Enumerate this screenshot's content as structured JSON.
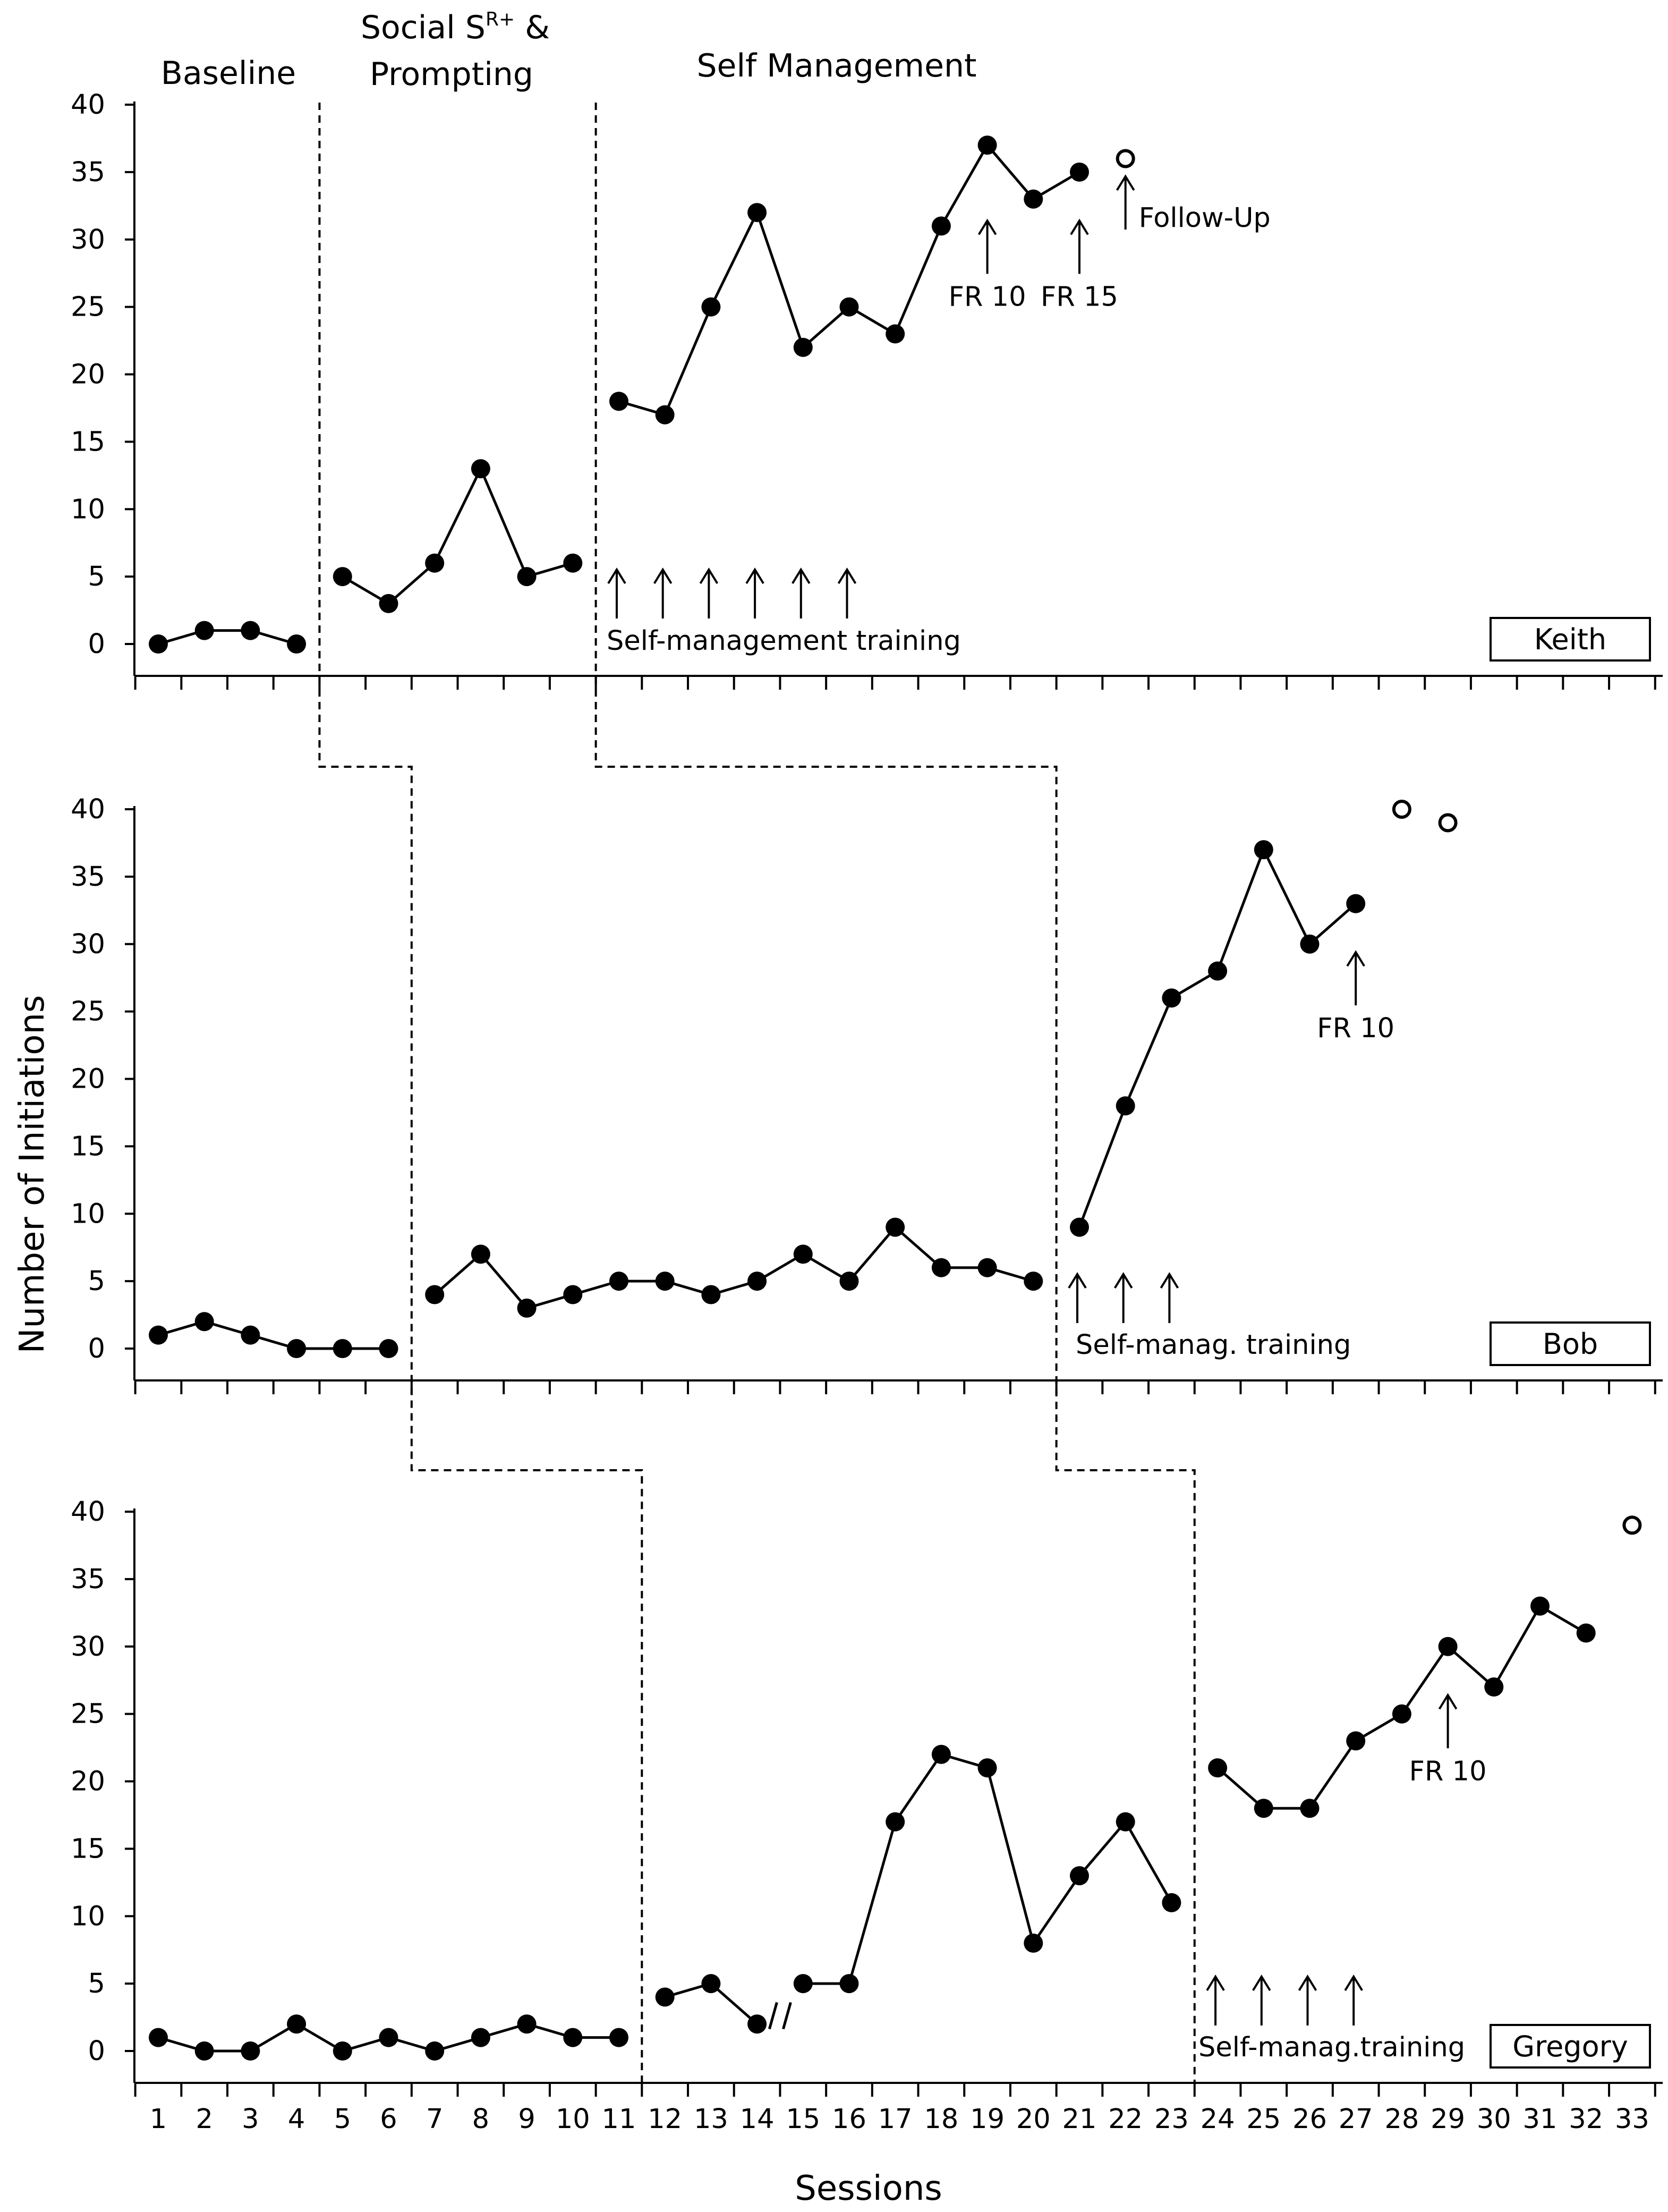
{
  "chart_data": {
    "type": "line",
    "subtype": "multiple-baseline",
    "ylabel": "Number of Initiations",
    "xlabel": "Sessions",
    "ylim": [
      0,
      40
    ],
    "yticks": [
      0,
      5,
      10,
      15,
      20,
      25,
      30,
      35,
      40
    ],
    "xlim": [
      0.5,
      33.5
    ],
    "xticks": [
      1,
      2,
      3,
      4,
      5,
      6,
      7,
      8,
      9,
      10,
      11,
      12,
      13,
      14,
      15,
      16,
      17,
      18,
      19,
      20,
      21,
      22,
      23,
      24,
      25,
      26,
      27,
      28,
      29,
      30,
      31,
      32,
      33
    ],
    "phases": {
      "baseline": "Baseline",
      "social_main": "Social S",
      "social_sup": "R+",
      "social_amp": " &",
      "prompting": "Prompting",
      "self_management": "Self Management"
    },
    "panels": [
      {
        "name": "Keith",
        "phase_changes": [
          4.5,
          10.5
        ],
        "segments": [
          {
            "x": [
              1,
              2,
              3,
              4
            ],
            "y": [
              0,
              1,
              1,
              0
            ]
          },
          {
            "x": [
              5,
              6,
              7,
              8,
              9,
              10
            ],
            "y": [
              5,
              3,
              6,
              13,
              5,
              6
            ]
          },
          {
            "x": [
              11,
              12,
              13,
              14,
              15,
              16,
              17,
              18,
              19,
              20,
              21
            ],
            "y": [
              18,
              17,
              25,
              32,
              22,
              25,
              23,
              31,
              37,
              33,
              35
            ]
          }
        ],
        "follow_up": [
          {
            "x": 22,
            "y": 36
          }
        ],
        "training_arrows": [
          11,
          12,
          13,
          14,
          15,
          16
        ],
        "training_label": "Self-management training",
        "annotations": [
          {
            "x": 19,
            "y": 31,
            "label": "FR 10"
          },
          {
            "x": 21,
            "y": 31,
            "label": "FR 15"
          }
        ],
        "follow_up_label": "Follow-Up"
      },
      {
        "name": "Bob",
        "phase_changes": [
          6.5,
          20.5
        ],
        "segments": [
          {
            "x": [
              1,
              2,
              3,
              4,
              5,
              6
            ],
            "y": [
              1,
              2,
              1,
              0,
              0,
              0
            ]
          },
          {
            "x": [
              7,
              8,
              9,
              10,
              11,
              12,
              13,
              14,
              15,
              16,
              17,
              18,
              19,
              20
            ],
            "y": [
              4,
              7,
              3,
              4,
              5,
              5,
              4,
              5,
              7,
              5,
              9,
              6,
              6,
              5
            ]
          },
          {
            "x": [
              21,
              22,
              23,
              24,
              25,
              26,
              27
            ],
            "y": [
              9,
              18,
              26,
              28,
              37,
              30,
              33
            ]
          }
        ],
        "follow_up": [
          {
            "x": 28,
            "y": 40
          },
          {
            "x": 29,
            "y": 39
          }
        ],
        "training_arrows": [
          21,
          22,
          23
        ],
        "training_label": "Self-manag. training",
        "annotations": [
          {
            "x": 27,
            "y": 29,
            "label": "FR 10"
          }
        ]
      },
      {
        "name": "Gregory",
        "phase_changes": [
          11.5,
          23.5
        ],
        "segments": [
          {
            "x": [
              1,
              2,
              3,
              4,
              5,
              6,
              7,
              8,
              9,
              10,
              11
            ],
            "y": [
              1,
              0,
              0,
              2,
              0,
              1,
              0,
              1,
              2,
              1,
              1
            ]
          },
          {
            "x": [
              12,
              13,
              14
            ],
            "y": [
              4,
              5,
              2
            ]
          },
          {
            "x": [
              15,
              16,
              17,
              18,
              19,
              20,
              21,
              22,
              23
            ],
            "y": [
              5,
              5,
              17,
              22,
              21,
              8,
              13,
              17,
              11
            ]
          },
          {
            "x": [
              24,
              25,
              26,
              27,
              28,
              29,
              30,
              31,
              32
            ],
            "y": [
              21,
              18,
              18,
              23,
              25,
              30,
              27,
              33,
              31
            ]
          }
        ],
        "follow_up": [
          {
            "x": 33,
            "y": 39
          }
        ],
        "break_mark": {
          "x": 14.5
        },
        "training_arrows": [
          24,
          25,
          26,
          27
        ],
        "training_label": "Self-manag.training",
        "annotations": [
          {
            "x": 29,
            "y": 26,
            "label": "FR 10"
          }
        ]
      }
    ]
  }
}
